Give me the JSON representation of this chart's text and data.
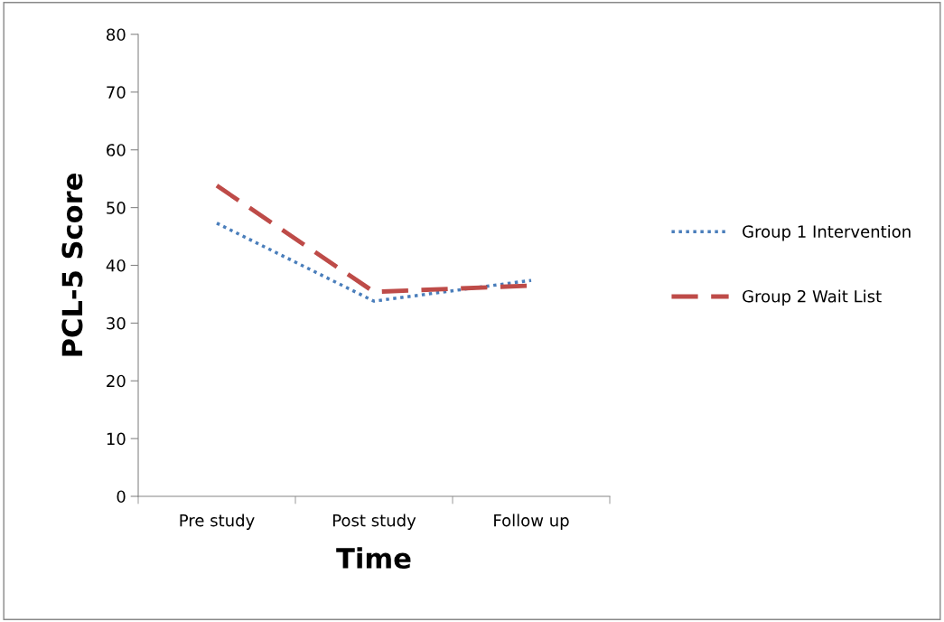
{
  "chart_data": {
    "type": "line",
    "xlabel": "Time",
    "ylabel": "PCL-5 Score",
    "categories": [
      "Pre study",
      "Post study",
      "Follow up"
    ],
    "series": [
      {
        "name": "Group 1 Intervention",
        "color": "#4a7ebb",
        "line_style": "dotted",
        "values": [
          47.3,
          33.8,
          37.4
        ]
      },
      {
        "name": "Group 2 Wait List",
        "color": "#be4b48",
        "line_style": "dashed",
        "values": [
          53.8,
          35.4,
          36.5
        ]
      }
    ],
    "ylim": [
      0,
      80
    ],
    "yticks": [
      0,
      10,
      20,
      30,
      40,
      50,
      60,
      70,
      80
    ],
    "grid": false,
    "legend": "right",
    "marker": "none"
  }
}
